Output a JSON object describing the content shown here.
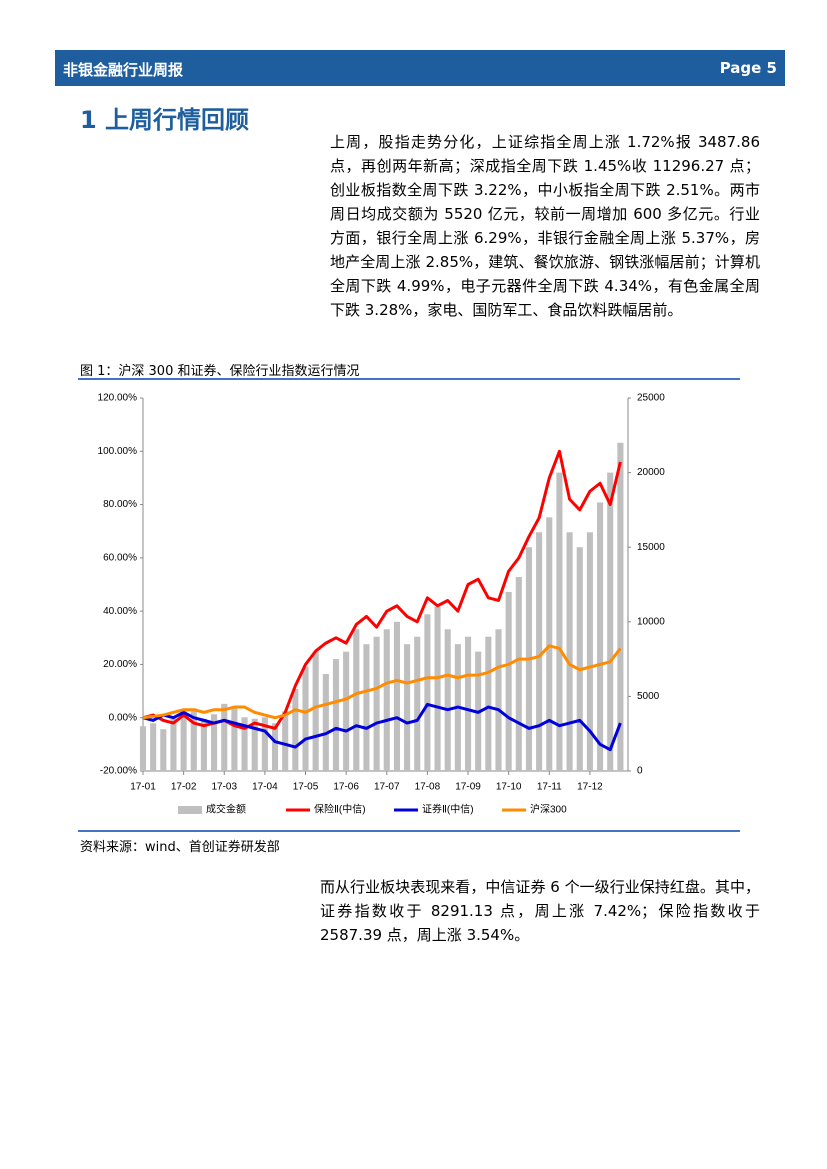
{
  "header": {
    "title": "非银金融行业周报",
    "page": "Page 5"
  },
  "section": {
    "title": "1  上周行情回顾"
  },
  "paragraphs": [
    "上周，股指走势分化，上证综指全周上涨 1.72%报 3487.86 点，再创两年新高；深成指全周下跌 1.45%收 11296.27 点；创业板指数全周下跌 3.22%，中小板指全周下跌 2.51%。两市周日均成交额为 5520 亿元，较前一周增加 600 多亿元。行业方面，银行全周上涨 6.29%，非银行金融全周上涨 5.37%，房地产全周上涨 2.85%，建筑、餐饮旅游、钢铁涨幅居前；计算机全周下跌 4.99%，电子元器件全周下跌 4.34%，有色金属全周下跌 3.28%，家电、国防军工、食品饮料跌幅居前。",
    "而从行业板块表现来看，中信证券 6 个一级行业保持红盘。其中，证券指数收于 8291.13 点，周上涨 7.42%；保险指数收于 2587.39 点，周上涨 3.54%。"
  ],
  "figure": {
    "caption": "图 1：沪深 300 和证券、保险行业指数运行情况",
    "source": "资料来源：wind、首创证券研发部"
  },
  "chart_data": {
    "type": "combo",
    "categories": [
      "17-01",
      null,
      null,
      null,
      "17-02",
      null,
      null,
      null,
      "17-03",
      null,
      null,
      null,
      "17-04",
      null,
      null,
      null,
      "17-05",
      null,
      null,
      null,
      "17-06",
      null,
      null,
      null,
      "17-07",
      null,
      null,
      null,
      "17-08",
      null,
      null,
      null,
      "17-09",
      null,
      null,
      null,
      "17-10",
      null,
      null,
      null,
      "17-11",
      null,
      null,
      null,
      "17-12",
      null,
      null,
      null
    ],
    "series": [
      {
        "name": "成交金额",
        "type": "bar",
        "axis": "y2",
        "color": "#bfbfbf",
        "values": [
          3000,
          3200,
          2800,
          3500,
          4000,
          4200,
          3500,
          3800,
          4500,
          4300,
          3600,
          3500,
          3600,
          3200,
          4000,
          5500,
          7000,
          8000,
          6500,
          7500,
          8000,
          9500,
          8500,
          9000,
          9500,
          10000,
          8500,
          9000,
          10500,
          11000,
          9500,
          8500,
          9000,
          8000,
          9000,
          9500,
          12000,
          13000,
          15000,
          16000,
          17000,
          20000,
          16000,
          15000,
          16000,
          18000,
          20000,
          22000
        ]
      },
      {
        "name": "保险Ⅱ(中信)",
        "type": "line",
        "color": "#ff0000",
        "values": [
          0,
          1,
          -1,
          -2,
          1,
          -2,
          -3,
          -2,
          -1,
          -3,
          -4,
          -2,
          -3,
          -4,
          2,
          12,
          20,
          25,
          28,
          30,
          28,
          35,
          38,
          34,
          40,
          42,
          38,
          36,
          45,
          42,
          44,
          40,
          50,
          52,
          45,
          44,
          55,
          60,
          68,
          75,
          90,
          100,
          82,
          78,
          85,
          88,
          80,
          96
        ]
      },
      {
        "name": "证券Ⅱ(中信)",
        "type": "line",
        "color": "#0000dd",
        "values": [
          0,
          -1,
          1,
          0,
          2,
          0,
          -1,
          -2,
          -1,
          -2,
          -3,
          -4,
          -5,
          -9,
          -10,
          -11,
          -8,
          -7,
          -6,
          -4,
          -5,
          -3,
          -4,
          -2,
          -1,
          0,
          -2,
          -1,
          5,
          4,
          3,
          4,
          3,
          2,
          4,
          3,
          0,
          -2,
          -4,
          -3,
          -1,
          -3,
          -2,
          -1,
          -5,
          -10,
          -12,
          -2
        ]
      },
      {
        "name": "沪深300",
        "type": "line",
        "color": "#ff8c00",
        "values": [
          0,
          0.5,
          1,
          2,
          3,
          3,
          2,
          3,
          3,
          4,
          4,
          2,
          1,
          0,
          1,
          3,
          2,
          4,
          5,
          6,
          7,
          9,
          10,
          11,
          13,
          14,
          13,
          14,
          15,
          15,
          16,
          15,
          16,
          16,
          17,
          19,
          20,
          22,
          22,
          23,
          27,
          26,
          20,
          18,
          19,
          20,
          21,
          26
        ]
      }
    ],
    "ylim": [
      -20,
      120
    ],
    "yticks": [
      {
        "value": -20,
        "label": "-20.00%"
      },
      {
        "value": 0,
        "label": "0.00%"
      },
      {
        "value": 20,
        "label": "20.00%"
      },
      {
        "value": 40,
        "label": "40.00%"
      },
      {
        "value": 60,
        "label": "60.00%"
      },
      {
        "value": 80,
        "label": "80.00%"
      },
      {
        "value": 100,
        "label": "100.00%"
      },
      {
        "value": 120,
        "label": "120.00%"
      }
    ],
    "y2lim": [
      0,
      25000
    ],
    "y2ticks": [
      0,
      5000,
      10000,
      15000,
      20000,
      25000
    ],
    "legend": "bottom"
  }
}
